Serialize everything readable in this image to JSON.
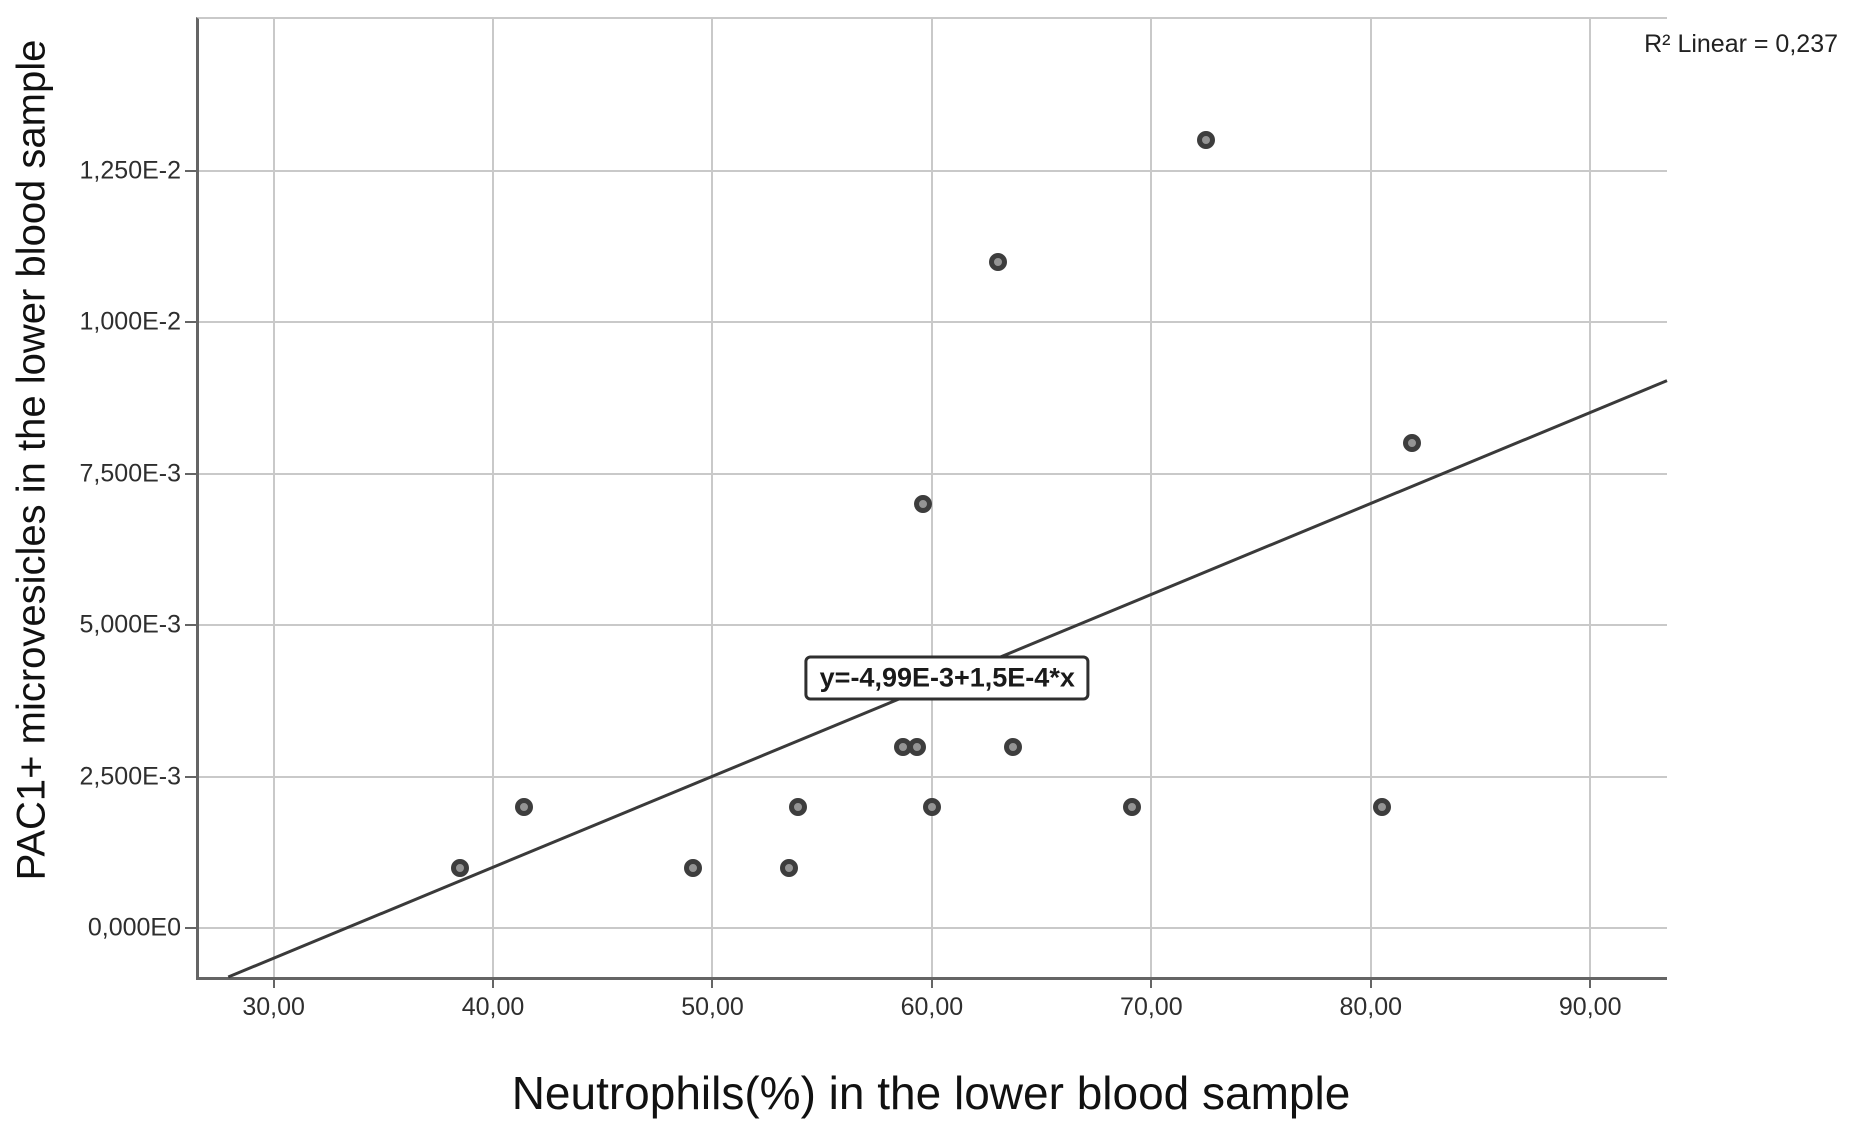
{
  "chart_data": {
    "type": "scatter",
    "title": "",
    "xlabel": "Neutrophils(%) in the lower blood sample",
    "ylabel": "PAC1+ microvesicles in the lower blood sample",
    "r_squared_label": "R² Linear = 0,237",
    "xlim": [
      26.6,
      93.5
    ],
    "ylim": [
      -0.0008,
      0.015
    ],
    "grid": true,
    "x_ticks": [
      {
        "value": 30,
        "label": "30,00"
      },
      {
        "value": 40,
        "label": "40,00"
      },
      {
        "value": 50,
        "label": "50,00"
      },
      {
        "value": 60,
        "label": "60,00"
      },
      {
        "value": 70,
        "label": "70,00"
      },
      {
        "value": 80,
        "label": "80,00"
      },
      {
        "value": 90,
        "label": "90,00"
      }
    ],
    "y_ticks": [
      {
        "value": 0,
        "label": "0,000E0"
      },
      {
        "value": 0.0025,
        "label": "2,500E-3"
      },
      {
        "value": 0.005,
        "label": "5,000E-3"
      },
      {
        "value": 0.0075,
        "label": "7,500E-3"
      },
      {
        "value": 0.01,
        "label": "1,000E-2"
      },
      {
        "value": 0.0125,
        "label": "1,250E-2"
      }
    ],
    "points": [
      {
        "x": 38.5,
        "y": 0.001
      },
      {
        "x": 41.4,
        "y": 0.002
      },
      {
        "x": 49.1,
        "y": 0.001
      },
      {
        "x": 53.5,
        "y": 0.001
      },
      {
        "x": 53.9,
        "y": 0.002
      },
      {
        "x": 58.7,
        "y": 0.003
      },
      {
        "x": 59.3,
        "y": 0.003
      },
      {
        "x": 59.6,
        "y": 0.007
      },
      {
        "x": 60.0,
        "y": 0.002
      },
      {
        "x": 63.0,
        "y": 0.011
      },
      {
        "x": 63.7,
        "y": 0.003
      },
      {
        "x": 69.1,
        "y": 0.002
      },
      {
        "x": 72.5,
        "y": 0.013
      },
      {
        "x": 80.5,
        "y": 0.002
      },
      {
        "x": 81.9,
        "y": 0.008
      }
    ],
    "fit_line": {
      "equation_label": "y=-4,99E-3+1,5E-4*x",
      "intercept": -0.00499,
      "slope": 0.00015,
      "label_anchor": {
        "x": 60.7,
        "y": 0.00413
      }
    }
  },
  "colors": {
    "background": "#ffffff",
    "gridline": "#c9c9c9",
    "axis_line": "#656565",
    "point_ring": "#3d3d3d",
    "point_fill": "#949494",
    "fit_line": "#3a3a3a",
    "text": "#1c1c1c"
  }
}
